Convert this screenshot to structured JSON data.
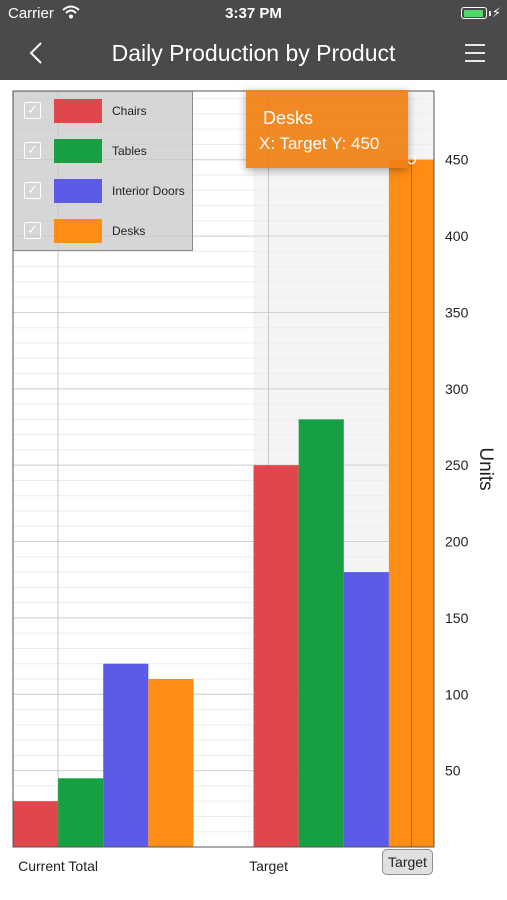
{
  "status_bar": {
    "carrier": "Carrier",
    "time": "3:37 PM"
  },
  "nav": {
    "title": "Daily Production by Product"
  },
  "legend": {
    "items": [
      {
        "label": "Chairs",
        "color": "#e0474c"
      },
      {
        "label": "Tables",
        "color": "#16a043"
      },
      {
        "label": "Interior Doors",
        "color": "#5b5be8"
      },
      {
        "label": "Desks",
        "color": "#ff8c14"
      }
    ]
  },
  "tooltip": {
    "series": "Desks",
    "value_text": "X: Target Y: 450"
  },
  "crosshair_label": "Target",
  "chart_data": {
    "type": "bar",
    "title": "Daily Production by Product",
    "categories": [
      "Current Total",
      "Target"
    ],
    "series": [
      {
        "name": "Chairs",
        "color": "#e0474c",
        "values": [
          30,
          250
        ]
      },
      {
        "name": "Tables",
        "color": "#16a043",
        "values": [
          45,
          280
        ]
      },
      {
        "name": "Interior Doors",
        "color": "#5b5be8",
        "values": [
          120,
          180
        ]
      },
      {
        "name": "Desks",
        "color": "#ff8c14",
        "values": [
          110,
          450
        ]
      }
    ],
    "ylabel": "Units",
    "ylim": [
      0,
      495
    ],
    "yticks": [
      50,
      100,
      150,
      200,
      250,
      300,
      350,
      400,
      450
    ],
    "y_axis_position": "right",
    "grid": true,
    "legend_position": "top-left",
    "selected": {
      "series": "Desks",
      "category": "Target",
      "value": 450
    }
  }
}
